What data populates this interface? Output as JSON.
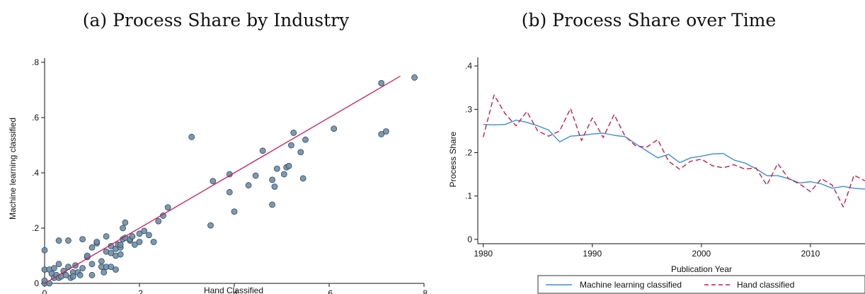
{
  "colors": {
    "scatter_fill": "#6f8ea6",
    "scatter_stroke": "#2f4a60",
    "fit_line": "#cc1a5a",
    "ml_line": "#3a8fd6",
    "hand_line": "#cc1a4a",
    "axis": "#111111"
  },
  "chart_data": [
    {
      "type": "scatter",
      "title": "(a) Process Share by Industry",
      "xlabel": "Hand Classified",
      "ylabel": "Machine learning classified",
      "xlim": [
        0,
        0.8
      ],
      "ylim": [
        0,
        0.8
      ],
      "xticks": [
        0,
        0.2,
        0.4,
        0.6,
        0.8
      ],
      "xtick_labels": [
        "0",
        ".2",
        ".4",
        ".6",
        ".8"
      ],
      "yticks": [
        0,
        0.2,
        0.4,
        0.6,
        0.8
      ],
      "ytick_labels": [
        "0",
        ".2",
        ".4",
        ".6",
        ".8"
      ],
      "fit_line": {
        "x": [
          0,
          0.75
        ],
        "y": [
          0,
          0.75
        ]
      },
      "points": [
        [
          0.0,
          0.0
        ],
        [
          0.0,
          0.01
        ],
        [
          0.0,
          0.05
        ],
        [
          0.0,
          0.12
        ],
        [
          0.01,
          0.05
        ],
        [
          0.01,
          0.0
        ],
        [
          0.015,
          0.035
        ],
        [
          0.02,
          0.02
        ],
        [
          0.02,
          0.055
        ],
        [
          0.025,
          0.03
        ],
        [
          0.03,
          0.02
        ],
        [
          0.03,
          0.07
        ],
        [
          0.035,
          0.025
        ],
        [
          0.04,
          0.045
        ],
        [
          0.045,
          0.03
        ],
        [
          0.05,
          0.06
        ],
        [
          0.055,
          0.02
        ],
        [
          0.06,
          0.04
        ],
        [
          0.06,
          0.025
        ],
        [
          0.065,
          0.065
        ],
        [
          0.07,
          0.04
        ],
        [
          0.075,
          0.03
        ],
        [
          0.08,
          0.055
        ],
        [
          0.05,
          0.155
        ],
        [
          0.08,
          0.16
        ],
        [
          0.03,
          0.155
        ],
        [
          0.09,
          0.095
        ],
        [
          0.09,
          0.1
        ],
        [
          0.1,
          0.03
        ],
        [
          0.1,
          0.07
        ],
        [
          0.1,
          0.13
        ],
        [
          0.11,
          0.145
        ],
        [
          0.11,
          0.15
        ],
        [
          0.12,
          0.06
        ],
        [
          0.12,
          0.08
        ],
        [
          0.125,
          0.04
        ],
        [
          0.13,
          0.06
        ],
        [
          0.13,
          0.115
        ],
        [
          0.13,
          0.17
        ],
        [
          0.14,
          0.06
        ],
        [
          0.14,
          0.11
        ],
        [
          0.14,
          0.135
        ],
        [
          0.15,
          0.05
        ],
        [
          0.15,
          0.1
        ],
        [
          0.15,
          0.125
        ],
        [
          0.155,
          0.14
        ],
        [
          0.16,
          0.105
        ],
        [
          0.16,
          0.13
        ],
        [
          0.16,
          0.14
        ],
        [
          0.165,
          0.16
        ],
        [
          0.165,
          0.2
        ],
        [
          0.17,
          0.22
        ],
        [
          0.17,
          0.165
        ],
        [
          0.18,
          0.155
        ],
        [
          0.18,
          0.16
        ],
        [
          0.185,
          0.17
        ],
        [
          0.19,
          0.14
        ],
        [
          0.2,
          0.15
        ],
        [
          0.2,
          0.18
        ],
        [
          0.21,
          0.19
        ],
        [
          0.22,
          0.175
        ],
        [
          0.23,
          0.15
        ],
        [
          0.24,
          0.225
        ],
        [
          0.25,
          0.245
        ],
        [
          0.26,
          0.275
        ],
        [
          0.31,
          0.53
        ],
        [
          0.35,
          0.21
        ],
        [
          0.355,
          0.37
        ],
        [
          0.39,
          0.395
        ],
        [
          0.39,
          0.33
        ],
        [
          0.4,
          0.26
        ],
        [
          0.43,
          0.355
        ],
        [
          0.445,
          0.39
        ],
        [
          0.46,
          0.48
        ],
        [
          0.48,
          0.285
        ],
        [
          0.48,
          0.375
        ],
        [
          0.485,
          0.35
        ],
        [
          0.49,
          0.415
        ],
        [
          0.505,
          0.395
        ],
        [
          0.51,
          0.42
        ],
        [
          0.515,
          0.425
        ],
        [
          0.52,
          0.5
        ],
        [
          0.525,
          0.545
        ],
        [
          0.54,
          0.475
        ],
        [
          0.545,
          0.38
        ],
        [
          0.55,
          0.52
        ],
        [
          0.61,
          0.56
        ],
        [
          0.71,
          0.54
        ],
        [
          0.71,
          0.725
        ],
        [
          0.72,
          0.55
        ],
        [
          0.78,
          0.745
        ]
      ]
    },
    {
      "type": "line",
      "title": "(b) Process Share over Time",
      "xlabel": "Publication Year",
      "ylabel": "Process Share",
      "xlim": [
        1979.5,
        2015
      ],
      "ylim": [
        -0.01,
        0.41
      ],
      "xticks": [
        1980,
        1990,
        2000,
        2010
      ],
      "xtick_labels": [
        "1980",
        "1990",
        "2000",
        "2010"
      ],
      "yticks": [
        0,
        0.1,
        0.2,
        0.3,
        0.4
      ],
      "ytick_labels": [
        "0",
        ".1",
        ".2",
        ".3",
        ".4"
      ],
      "x": [
        1980,
        1981,
        1982,
        1983,
        1984,
        1985,
        1986,
        1987,
        1988,
        1989,
        1990,
        1991,
        1992,
        1993,
        1994,
        1995,
        1996,
        1997,
        1998,
        1999,
        2000,
        2001,
        2002,
        2003,
        2004,
        2005,
        2006,
        2007,
        2008,
        2009,
        2010,
        2011,
        2012,
        2013,
        2014,
        2015
      ],
      "series": [
        {
          "name": "Machine learning classified",
          "style": "solid",
          "values": [
            0.265,
            0.264,
            0.265,
            0.275,
            0.27,
            0.262,
            0.252,
            0.225,
            0.238,
            0.24,
            0.243,
            0.245,
            0.24,
            0.237,
            0.22,
            0.204,
            0.188,
            0.196,
            0.177,
            0.188,
            0.192,
            0.197,
            0.198,
            0.183,
            0.176,
            0.163,
            0.147,
            0.147,
            0.14,
            0.13,
            0.133,
            0.128,
            0.118,
            0.122,
            0.118,
            0.116
          ]
        },
        {
          "name": "Hand classified",
          "style": "dashed",
          "values": [
            0.236,
            0.333,
            0.29,
            0.262,
            0.295,
            0.25,
            0.238,
            0.25,
            0.302,
            0.228,
            0.28,
            0.235,
            0.288,
            0.238,
            0.215,
            0.213,
            0.23,
            0.18,
            0.162,
            0.18,
            0.185,
            0.17,
            0.165,
            0.172,
            0.162,
            0.165,
            0.125,
            0.175,
            0.14,
            0.128,
            0.11,
            0.14,
            0.125,
            0.075,
            0.148,
            0.135
          ]
        }
      ],
      "legend": {
        "position": "bottom",
        "entries": [
          "Machine learning classified",
          "Hand classified"
        ]
      }
    }
  ]
}
